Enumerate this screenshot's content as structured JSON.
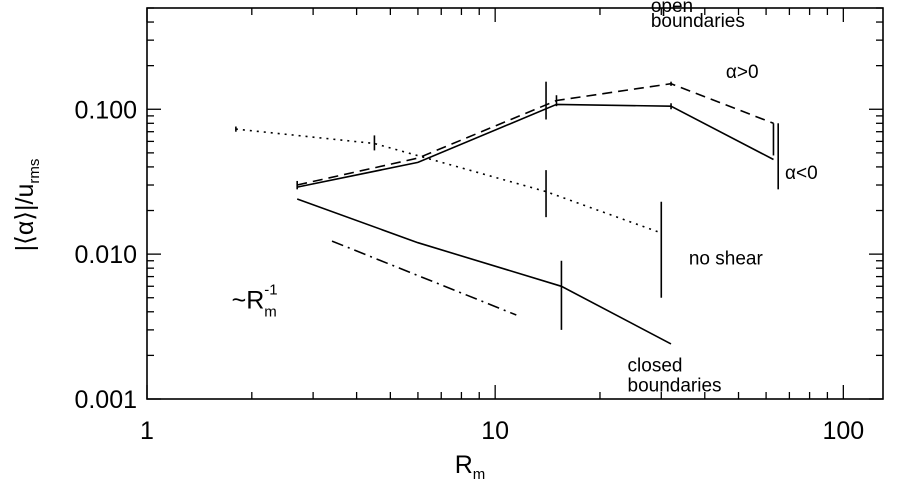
{
  "chart_data": {
    "type": "line",
    "xlabel": "R",
    "xlabel_sub": "m",
    "ylabel": "|⟨α⟩|/u",
    "ylabel_sub": "rms",
    "xscale": "log",
    "yscale": "log",
    "xlim": [
      1,
      130
    ],
    "ylim": [
      0.001,
      0.5
    ],
    "x_tick_labels": [
      "1",
      "10",
      "100"
    ],
    "y_tick_labels": [
      "0.001",
      "0.010",
      "0.100"
    ],
    "series": [
      {
        "style": "dashed",
        "x": [
          2.7,
          6,
          15,
          32,
          63
        ],
        "y": [
          0.03,
          0.046,
          0.115,
          0.15,
          0.08
        ],
        "err": [
          {
            "x": 2.7,
            "lo": 0.028,
            "hi": 0.032
          },
          {
            "x": 15,
            "lo": 0.105,
            "hi": 0.125
          },
          {
            "x": 32,
            "lo": 0.145,
            "hi": 0.155
          },
          {
            "x": 63,
            "lo": 0.048,
            "hi": 0.08
          }
        ]
      },
      {
        "style": "solid",
        "x": [
          2.7,
          6,
          15,
          32,
          63
        ],
        "y": [
          0.029,
          0.043,
          0.108,
          0.105,
          0.045
        ],
        "err": [
          {
            "x": 14,
            "lo": 0.085,
            "hi": 0.155
          },
          {
            "x": 32,
            "lo": 0.1,
            "hi": 0.11
          },
          {
            "x": 65,
            "lo": 0.028,
            "hi": 0.08
          }
        ]
      },
      {
        "style": "dotted",
        "x": [
          1.8,
          4.5,
          14,
          30
        ],
        "y": [
          0.073,
          0.058,
          0.027,
          0.014
        ],
        "err": [
          {
            "x": 1.8,
            "lo": 0.07,
            "hi": 0.076
          },
          {
            "x": 4.5,
            "lo": 0.052,
            "hi": 0.066
          },
          {
            "x": 14,
            "lo": 0.018,
            "hi": 0.038
          },
          {
            "x": 30,
            "lo": 0.005,
            "hi": 0.023
          }
        ]
      },
      {
        "style": "solid",
        "x": [
          2.7,
          6,
          15.5,
          32
        ],
        "y": [
          0.024,
          0.012,
          0.006,
          0.0024
        ],
        "err": [
          {
            "x": 15.5,
            "lo": 0.003,
            "hi": 0.009
          }
        ]
      },
      {
        "style": "dashdot",
        "x": [
          3.4,
          11.5
        ],
        "y": [
          0.0123,
          0.0038
        ]
      }
    ],
    "annotations": [
      {
        "text": "open",
        "x": 28,
        "y": 0.47
      },
      {
        "text": "boundaries",
        "x": 28,
        "y": 0.37
      },
      {
        "text": "α>0",
        "x": 46,
        "y": 0.165
      },
      {
        "text": "α<0",
        "x": 68,
        "y": 0.033
      },
      {
        "text": "no shear",
        "x": 36,
        "y": 0.0085
      },
      {
        "text": "closed",
        "x": 24,
        "y": 0.00155
      },
      {
        "text": "boundaries",
        "x": 24,
        "y": 0.00113
      }
    ],
    "rm_label": {
      "base": "~R",
      "sup": "-1",
      "sub": "m",
      "x": 1.75,
      "y": 0.0042
    }
  }
}
